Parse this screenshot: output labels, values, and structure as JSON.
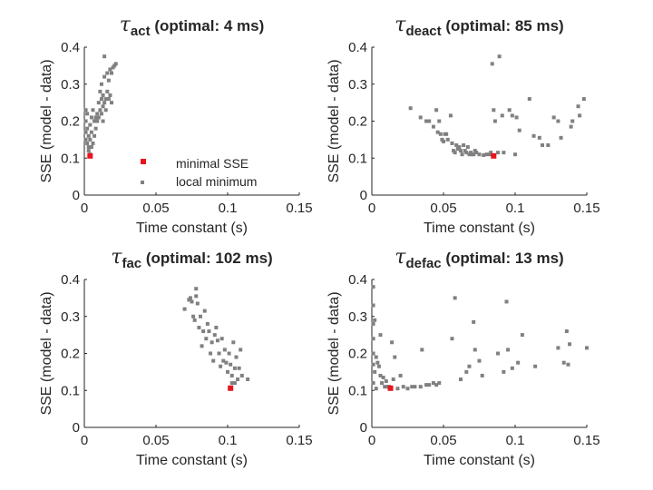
{
  "colors": {
    "local": "#808080",
    "minimal": "#e8141e",
    "axis": "#262626"
  },
  "legend": {
    "entries": [
      {
        "label": "minimal SSE",
        "series": "minimal"
      },
      {
        "label": "local minimum",
        "series": "local"
      }
    ]
  },
  "chart_data": [
    {
      "type": "scatter",
      "title_symbol": "τ",
      "title_subscript": "act",
      "title_rest": " (optimal: 4 ms)",
      "xlabel": "Time constant (s)",
      "ylabel": "SSE (model - data)",
      "xlim": [
        0,
        0.15
      ],
      "ylim": [
        0,
        0.4
      ],
      "xticks": [
        0,
        0.05,
        0.1,
        0.15
      ],
      "xtick_labels": [
        "0",
        "0.05",
        "0.1",
        "0.15"
      ],
      "yticks": [
        0,
        0.1,
        0.2,
        0.3,
        0.4
      ],
      "ytick_labels": [
        "0",
        "0.1",
        "0.2",
        "0.3",
        "0.4"
      ],
      "grid": false,
      "legend_position": "bottom-right",
      "series": [
        {
          "key": "local",
          "points": [
            [
              0.001,
              0.23
            ],
            [
              0.001,
              0.2
            ],
            [
              0.001,
              0.17
            ],
            [
              0.001,
              0.15
            ],
            [
              0.002,
              0.22
            ],
            [
              0.002,
              0.18
            ],
            [
              0.002,
              0.14
            ],
            [
              0.003,
              0.16
            ],
            [
              0.003,
              0.13
            ],
            [
              0.003,
              0.12
            ],
            [
              0.004,
              0.11
            ],
            [
              0.004,
              0.19
            ],
            [
              0.004,
              0.15
            ],
            [
              0.005,
              0.21
            ],
            [
              0.005,
              0.13
            ],
            [
              0.005,
              0.17
            ],
            [
              0.006,
              0.14
            ],
            [
              0.006,
              0.23
            ],
            [
              0.007,
              0.2
            ],
            [
              0.007,
              0.16
            ],
            [
              0.008,
              0.21
            ],
            [
              0.008,
              0.18
            ],
            [
              0.009,
              0.22
            ],
            [
              0.009,
              0.2
            ],
            [
              0.01,
              0.25
            ],
            [
              0.01,
              0.21
            ],
            [
              0.011,
              0.23
            ],
            [
              0.012,
              0.3
            ],
            [
              0.012,
              0.26
            ],
            [
              0.012,
              0.22
            ],
            [
              0.013,
              0.27
            ],
            [
              0.013,
              0.24
            ],
            [
              0.014,
              0.32
            ],
            [
              0.014,
              0.25
            ],
            [
              0.015,
              0.26
            ],
            [
              0.015,
              0.23
            ],
            [
              0.016,
              0.28
            ],
            [
              0.016,
              0.33
            ],
            [
              0.017,
              0.31
            ],
            [
              0.017,
              0.26
            ],
            [
              0.014,
              0.375
            ],
            [
              0.018,
              0.34
            ],
            [
              0.018,
              0.27
            ],
            [
              0.019,
              0.33
            ],
            [
              0.019,
              0.25
            ],
            [
              0.02,
              0.345
            ],
            [
              0.021,
              0.35
            ],
            [
              0.022,
              0.355
            ],
            [
              0.011,
              0.28
            ],
            [
              0.013,
              0.2
            ]
          ]
        },
        {
          "key": "minimal",
          "points": [
            [
              0.004,
              0.106
            ]
          ]
        }
      ]
    },
    {
      "type": "scatter",
      "title_symbol": "τ",
      "title_subscript": "deact",
      "title_rest": " (optimal: 85 ms)",
      "xlabel": "Time constant (s)",
      "ylabel": "SSE (model - data)",
      "xlim": [
        0,
        0.15
      ],
      "ylim": [
        0,
        0.4
      ],
      "xticks": [
        0,
        0.05,
        0.1,
        0.15
      ],
      "xtick_labels": [
        "0",
        "0.05",
        "0.1",
        "0.15"
      ],
      "yticks": [
        0,
        0.1,
        0.2,
        0.3,
        0.4
      ],
      "ytick_labels": [
        "0",
        "0.1",
        "0.2",
        "0.3",
        "0.4"
      ],
      "grid": false,
      "series": [
        {
          "key": "local",
          "points": [
            [
              0.027,
              0.235
            ],
            [
              0.034,
              0.21
            ],
            [
              0.038,
              0.2
            ],
            [
              0.04,
              0.2
            ],
            [
              0.043,
              0.185
            ],
            [
              0.045,
              0.23
            ],
            [
              0.046,
              0.17
            ],
            [
              0.047,
              0.2
            ],
            [
              0.048,
              0.165
            ],
            [
              0.049,
              0.15
            ],
            [
              0.05,
              0.145
            ],
            [
              0.051,
              0.165
            ],
            [
              0.052,
              0.165
            ],
            [
              0.053,
              0.15
            ],
            [
              0.055,
              0.215
            ],
            [
              0.056,
              0.14
            ],
            [
              0.057,
              0.12
            ],
            [
              0.058,
              0.115
            ],
            [
              0.059,
              0.135
            ],
            [
              0.06,
              0.125
            ],
            [
              0.061,
              0.13
            ],
            [
              0.062,
              0.12
            ],
            [
              0.063,
              0.11
            ],
            [
              0.064,
              0.135
            ],
            [
              0.065,
              0.12
            ],
            [
              0.066,
              0.115
            ],
            [
              0.067,
              0.13
            ],
            [
              0.068,
              0.11
            ],
            [
              0.069,
              0.115
            ],
            [
              0.07,
              0.11
            ],
            [
              0.071,
              0.11
            ],
            [
              0.072,
              0.12
            ],
            [
              0.073,
              0.115
            ],
            [
              0.075,
              0.11
            ],
            [
              0.078,
              0.108
            ],
            [
              0.08,
              0.11
            ],
            [
              0.082,
              0.11
            ],
            [
              0.083,
              0.115
            ],
            [
              0.084,
              0.355
            ],
            [
              0.085,
              0.23
            ],
            [
              0.086,
              0.2
            ],
            [
              0.088,
              0.115
            ],
            [
              0.089,
              0.375
            ],
            [
              0.091,
              0.215
            ],
            [
              0.092,
              0.115
            ],
            [
              0.096,
              0.23
            ],
            [
              0.098,
              0.215
            ],
            [
              0.1,
              0.11
            ],
            [
              0.101,
              0.21
            ],
            [
              0.103,
              0.175
            ],
            [
              0.11,
              0.26
            ],
            [
              0.113,
              0.16
            ],
            [
              0.117,
              0.155
            ],
            [
              0.119,
              0.135
            ],
            [
              0.123,
              0.135
            ],
            [
              0.127,
              0.21
            ],
            [
              0.13,
              0.2
            ],
            [
              0.132,
              0.155
            ],
            [
              0.139,
              0.185
            ],
            [
              0.14,
              0.2
            ],
            [
              0.144,
              0.24
            ],
            [
              0.145,
              0.215
            ],
            [
              0.148,
              0.26
            ]
          ]
        },
        {
          "key": "minimal",
          "points": [
            [
              0.085,
              0.106
            ]
          ]
        }
      ]
    },
    {
      "type": "scatter",
      "title_symbol": "τ",
      "title_subscript": "fac",
      "title_rest": " (optimal: 102 ms)",
      "xlabel": "Time constant (s)",
      "ylabel": "SSE (model - data)",
      "xlim": [
        0,
        0.15
      ],
      "ylim": [
        0,
        0.4
      ],
      "xticks": [
        0,
        0.05,
        0.1,
        0.15
      ],
      "xtick_labels": [
        "0",
        "0.05",
        "0.1",
        "0.15"
      ],
      "yticks": [
        0,
        0.1,
        0.2,
        0.3,
        0.4
      ],
      "ytick_labels": [
        "0",
        "0.1",
        "0.2",
        "0.3",
        "0.4"
      ],
      "grid": false,
      "series": [
        {
          "key": "local",
          "points": [
            [
              0.07,
              0.32
            ],
            [
              0.073,
              0.345
            ],
            [
              0.074,
              0.35
            ],
            [
              0.075,
              0.34
            ],
            [
              0.076,
              0.3
            ],
            [
              0.077,
              0.29
            ],
            [
              0.078,
              0.375
            ],
            [
              0.078,
              0.355
            ],
            [
              0.079,
              0.335
            ],
            [
              0.08,
              0.27
            ],
            [
              0.081,
              0.3
            ],
            [
              0.082,
              0.22
            ],
            [
              0.083,
              0.26
            ],
            [
              0.084,
              0.315
            ],
            [
              0.085,
              0.24
            ],
            [
              0.086,
              0.28
            ],
            [
              0.087,
              0.26
            ],
            [
              0.088,
              0.2
            ],
            [
              0.089,
              0.23
            ],
            [
              0.09,
              0.18
            ],
            [
              0.091,
              0.25
            ],
            [
              0.092,
              0.27
            ],
            [
              0.093,
              0.235
            ],
            [
              0.094,
              0.2
            ],
            [
              0.095,
              0.165
            ],
            [
              0.096,
              0.24
            ],
            [
              0.097,
              0.18
            ],
            [
              0.098,
              0.21
            ],
            [
              0.099,
              0.175
            ],
            [
              0.1,
              0.15
            ],
            [
              0.101,
              0.2
            ],
            [
              0.102,
              0.17
            ],
            [
              0.103,
              0.14
            ],
            [
              0.104,
              0.23
            ],
            [
              0.105,
              0.12
            ],
            [
              0.106,
              0.19
            ],
            [
              0.107,
              0.13
            ],
            [
              0.108,
              0.16
            ],
            [
              0.11,
              0.14
            ],
            [
              0.109,
              0.21
            ],
            [
              0.114,
              0.13
            ],
            [
              0.105,
              0.16
            ],
            [
              0.103,
              0.12
            ]
          ]
        },
        {
          "key": "minimal",
          "points": [
            [
              0.102,
              0.106
            ]
          ]
        }
      ]
    },
    {
      "type": "scatter",
      "title_symbol": "τ",
      "title_subscript": "defac",
      "title_rest": " (optimal: 13 ms)",
      "xlabel": "Time constant (s)",
      "ylabel": "SSE (model - data)",
      "xlim": [
        0,
        0.15
      ],
      "ylim": [
        0,
        0.4
      ],
      "xticks": [
        0,
        0.05,
        0.1,
        0.15
      ],
      "xtick_labels": [
        "0",
        "0.05",
        "0.1",
        "0.15"
      ],
      "yticks": [
        0,
        0.1,
        0.2,
        0.3,
        0.4
      ],
      "ytick_labels": [
        "0",
        "0.1",
        "0.2",
        "0.3",
        "0.4"
      ],
      "grid": false,
      "series": [
        {
          "key": "local",
          "points": [
            [
              0.001,
              0.38
            ],
            [
              0.001,
              0.33
            ],
            [
              0.001,
              0.28
            ],
            [
              0.001,
              0.24
            ],
            [
              0.001,
              0.2
            ],
            [
              0.001,
              0.17
            ],
            [
              0.001,
              0.12
            ],
            [
              0.002,
              0.29
            ],
            [
              0.002,
              0.15
            ],
            [
              0.003,
              0.19
            ],
            [
              0.003,
              0.105
            ],
            [
              0.004,
              0.175
            ],
            [
              0.005,
              0.165
            ],
            [
              0.006,
              0.25
            ],
            [
              0.006,
              0.14
            ],
            [
              0.007,
              0.12
            ],
            [
              0.008,
              0.135
            ],
            [
              0.009,
              0.11
            ],
            [
              0.01,
              0.125
            ],
            [
              0.011,
              0.11
            ],
            [
              0.012,
              0.11
            ],
            [
              0.014,
              0.23
            ],
            [
              0.015,
              0.13
            ],
            [
              0.016,
              0.19
            ],
            [
              0.018,
              0.105
            ],
            [
              0.02,
              0.14
            ],
            [
              0.022,
              0.11
            ],
            [
              0.025,
              0.105
            ],
            [
              0.028,
              0.11
            ],
            [
              0.03,
              0.11
            ],
            [
              0.034,
              0.11
            ],
            [
              0.035,
              0.21
            ],
            [
              0.038,
              0.115
            ],
            [
              0.04,
              0.115
            ],
            [
              0.043,
              0.12
            ],
            [
              0.045,
              0.115
            ],
            [
              0.047,
              0.12
            ],
            [
              0.056,
              0.24
            ],
            [
              0.058,
              0.35
            ],
            [
              0.062,
              0.13
            ],
            [
              0.066,
              0.15
            ],
            [
              0.068,
              0.165
            ],
            [
              0.071,
              0.285
            ],
            [
              0.072,
              0.21
            ],
            [
              0.075,
              0.18
            ],
            [
              0.077,
              0.14
            ],
            [
              0.088,
              0.2
            ],
            [
              0.092,
              0.15
            ],
            [
              0.094,
              0.34
            ],
            [
              0.095,
              0.21
            ],
            [
              0.098,
              0.16
            ],
            [
              0.102,
              0.175
            ],
            [
              0.105,
              0.25
            ],
            [
              0.114,
              0.165
            ],
            [
              0.13,
              0.215
            ],
            [
              0.134,
              0.175
            ],
            [
              0.136,
              0.26
            ],
            [
              0.137,
              0.17
            ],
            [
              0.138,
              0.225
            ],
            [
              0.15,
              0.215
            ]
          ]
        },
        {
          "key": "minimal",
          "points": [
            [
              0.013,
              0.106
            ]
          ]
        }
      ]
    }
  ]
}
